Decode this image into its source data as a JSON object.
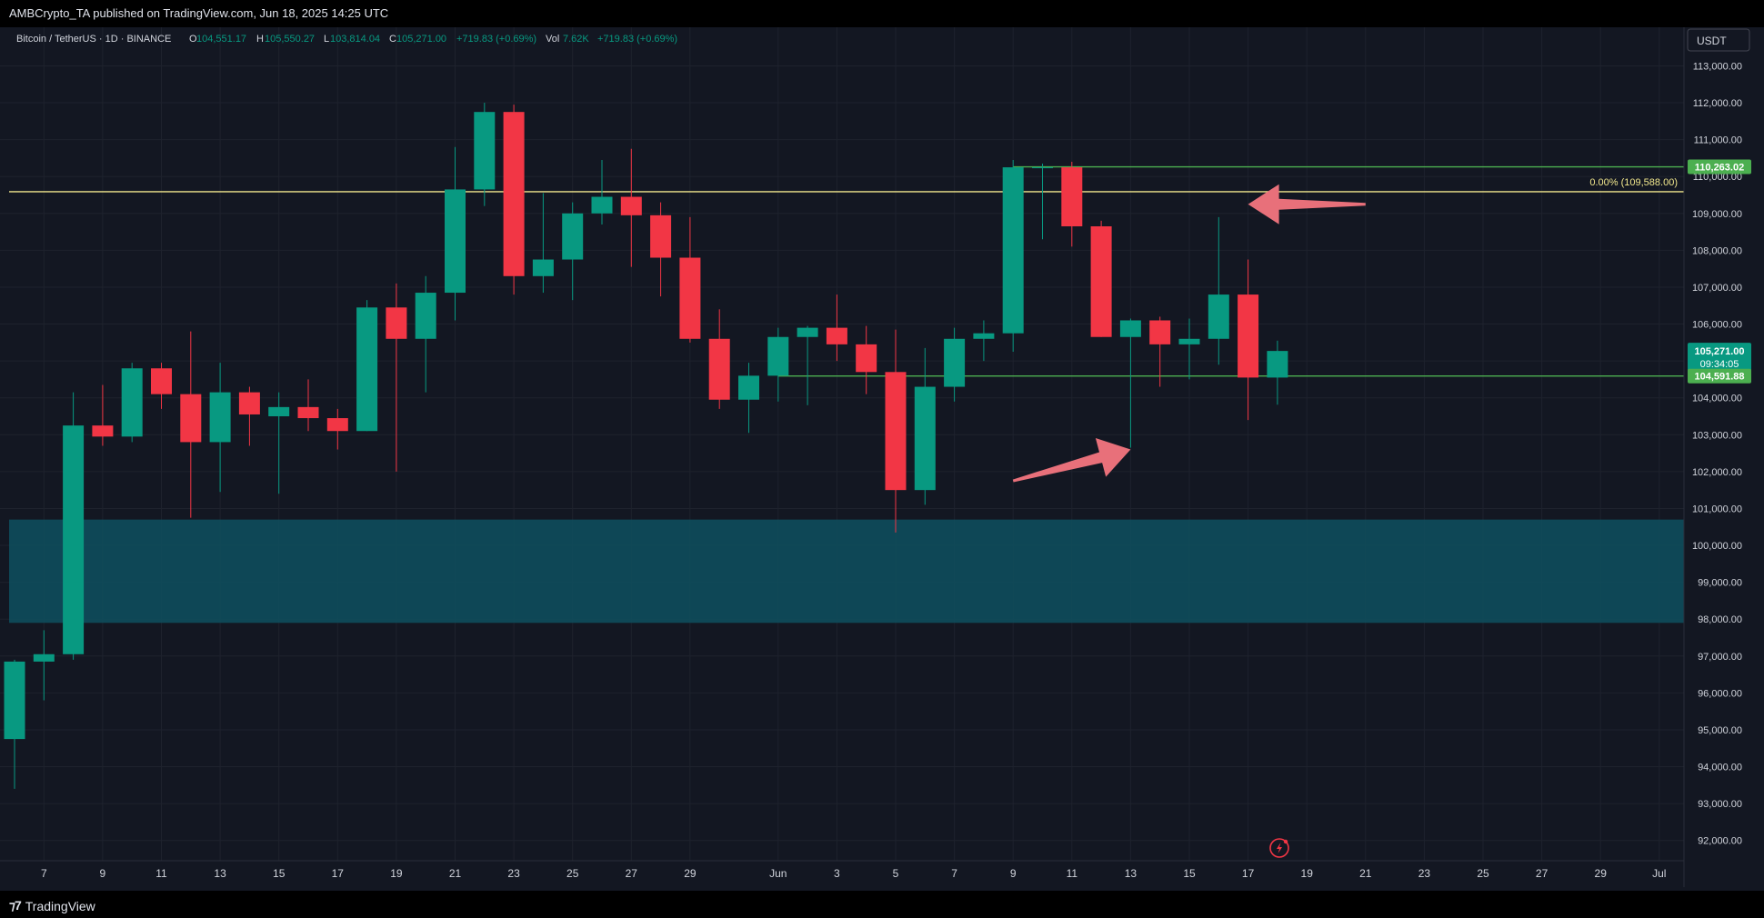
{
  "header": {
    "published_text": "AMBCrypto_TA published on TradingView.com, Jun 18, 2025 14:25 UTC"
  },
  "legend": {
    "symbol": "Bitcoin / TetherUS · 1D · BINANCE",
    "open_label": "O",
    "open": "104,551.17",
    "high_label": "H",
    "high": "105,550.27",
    "low_label": "L",
    "low": "103,814.04",
    "close_label": "C",
    "close": "105,271.00",
    "change": "+719.83 (+0.69%)",
    "vol_label": "Vol",
    "vol": "7.62K",
    "vol_change": "+719.83 (+0.69%)"
  },
  "currency_button": "USDT",
  "footer": {
    "brand": "TradingView"
  },
  "colors": {
    "background": "#131722",
    "up": "#089981",
    "down": "#f23645",
    "level_line": "#4caf50",
    "fib_line": "#f0e68c",
    "zone": "#0e4d5c",
    "arrow": "#e8707a"
  },
  "chart_data": {
    "type": "candlestick",
    "ylim": [
      91500,
      113800
    ],
    "y_ticks": [
      92000,
      93000,
      94000,
      95000,
      96000,
      97000,
      98000,
      99000,
      100000,
      101000,
      102000,
      103000,
      104000,
      105000,
      106000,
      107000,
      108000,
      109000,
      110000,
      111000,
      112000,
      113000
    ],
    "y_tick_labels": [
      "92,000.00",
      "93,000.00",
      "94,000.00",
      "95,000.00",
      "96,000.00",
      "97,000.00",
      "98,000.00",
      "99,000.00",
      "100,000.00",
      "101,000.00",
      "102,000.00",
      "103,000.00",
      "104,000.00",
      "105,000.00",
      "106,000.00",
      "107,000.00",
      "108,000.00",
      "109,000.00",
      "110,000.00",
      "111,000.00",
      "112,000.00",
      "113,000.00"
    ],
    "x_ticks": [
      {
        "date": "2025-05-07",
        "label": "7"
      },
      {
        "date": "2025-05-09",
        "label": "9"
      },
      {
        "date": "2025-05-11",
        "label": "11"
      },
      {
        "date": "2025-05-13",
        "label": "13"
      },
      {
        "date": "2025-05-15",
        "label": "15"
      },
      {
        "date": "2025-05-17",
        "label": "17"
      },
      {
        "date": "2025-05-19",
        "label": "19"
      },
      {
        "date": "2025-05-21",
        "label": "21"
      },
      {
        "date": "2025-05-23",
        "label": "23"
      },
      {
        "date": "2025-05-25",
        "label": "25"
      },
      {
        "date": "2025-05-27",
        "label": "27"
      },
      {
        "date": "2025-05-29",
        "label": "29"
      },
      {
        "date": "2025-06-01",
        "label": "Jun"
      },
      {
        "date": "2025-06-03",
        "label": "3"
      },
      {
        "date": "2025-06-05",
        "label": "5"
      },
      {
        "date": "2025-06-07",
        "label": "7"
      },
      {
        "date": "2025-06-09",
        "label": "9"
      },
      {
        "date": "2025-06-11",
        "label": "11"
      },
      {
        "date": "2025-06-13",
        "label": "13"
      },
      {
        "date": "2025-06-15",
        "label": "15"
      },
      {
        "date": "2025-06-17",
        "label": "17"
      },
      {
        "date": "2025-06-19",
        "label": "19"
      },
      {
        "date": "2025-06-21",
        "label": "21"
      },
      {
        "date": "2025-06-23",
        "label": "23"
      },
      {
        "date": "2025-06-25",
        "label": "25"
      },
      {
        "date": "2025-06-27",
        "label": "27"
      },
      {
        "date": "2025-06-29",
        "label": "29"
      },
      {
        "date": "2025-07-01",
        "label": "Jul"
      }
    ],
    "candles": [
      {
        "date": "2025-05-06",
        "o": 94750,
        "h": 96900,
        "l": 93400,
        "c": 96850
      },
      {
        "date": "2025-05-07",
        "o": 96850,
        "h": 97700,
        "l": 95800,
        "c": 97050
      },
      {
        "date": "2025-05-08",
        "o": 97050,
        "h": 104150,
        "l": 96900,
        "c": 103250
      },
      {
        "date": "2025-05-09",
        "o": 103250,
        "h": 104350,
        "l": 102700,
        "c": 102950
      },
      {
        "date": "2025-05-10",
        "o": 102950,
        "h": 104950,
        "l": 102800,
        "c": 104800
      },
      {
        "date": "2025-05-11",
        "o": 104800,
        "h": 104950,
        "l": 103700,
        "c": 104100
      },
      {
        "date": "2025-05-12",
        "o": 104100,
        "h": 105800,
        "l": 100750,
        "c": 102800
      },
      {
        "date": "2025-05-13",
        "o": 102800,
        "h": 104950,
        "l": 101450,
        "c": 104150
      },
      {
        "date": "2025-05-14",
        "o": 104150,
        "h": 104300,
        "l": 102700,
        "c": 103550
      },
      {
        "date": "2025-05-15",
        "o": 103500,
        "h": 104150,
        "l": 101400,
        "c": 103750
      },
      {
        "date": "2025-05-16",
        "o": 103750,
        "h": 104500,
        "l": 103100,
        "c": 103450
      },
      {
        "date": "2025-05-17",
        "o": 103450,
        "h": 103700,
        "l": 102600,
        "c": 103100
      },
      {
        "date": "2025-05-18",
        "o": 103100,
        "h": 106650,
        "l": 103100,
        "c": 106450
      },
      {
        "date": "2025-05-19",
        "o": 106450,
        "h": 107100,
        "l": 102000,
        "c": 105600
      },
      {
        "date": "2025-05-20",
        "o": 105600,
        "h": 107300,
        "l": 104150,
        "c": 106850
      },
      {
        "date": "2025-05-21",
        "o": 106850,
        "h": 110800,
        "l": 106100,
        "c": 109650
      },
      {
        "date": "2025-05-22",
        "o": 109650,
        "h": 112000,
        "l": 109200,
        "c": 111750
      },
      {
        "date": "2025-05-23",
        "o": 111750,
        "h": 111950,
        "l": 106800,
        "c": 107300
      },
      {
        "date": "2025-05-24",
        "o": 107300,
        "h": 109550,
        "l": 106850,
        "c": 107750
      },
      {
        "date": "2025-05-25",
        "o": 107750,
        "h": 109300,
        "l": 106650,
        "c": 109000
      },
      {
        "date": "2025-05-26",
        "o": 109000,
        "h": 110450,
        "l": 108700,
        "c": 109450
      },
      {
        "date": "2025-05-27",
        "o": 109450,
        "h": 110750,
        "l": 107550,
        "c": 108950
      },
      {
        "date": "2025-05-28",
        "o": 108950,
        "h": 109300,
        "l": 106750,
        "c": 107800
      },
      {
        "date": "2025-05-29",
        "o": 107800,
        "h": 108900,
        "l": 105500,
        "c": 105600
      },
      {
        "date": "2025-05-30",
        "o": 105600,
        "h": 106400,
        "l": 103700,
        "c": 103950
      },
      {
        "date": "2025-05-31",
        "o": 103950,
        "h": 104950,
        "l": 103050,
        "c": 104600
      },
      {
        "date": "2025-06-01",
        "o": 104600,
        "h": 105900,
        "l": 103900,
        "c": 105650
      },
      {
        "date": "2025-06-02",
        "o": 105650,
        "h": 105950,
        "l": 103800,
        "c": 105900
      },
      {
        "date": "2025-06-03",
        "o": 105900,
        "h": 106800,
        "l": 105000,
        "c": 105450
      },
      {
        "date": "2025-06-04",
        "o": 105450,
        "h": 105950,
        "l": 104100,
        "c": 104700
      },
      {
        "date": "2025-06-05",
        "o": 104700,
        "h": 105850,
        "l": 100350,
        "c": 101500
      },
      {
        "date": "2025-06-06",
        "o": 101500,
        "h": 105350,
        "l": 101100,
        "c": 104300
      },
      {
        "date": "2025-06-07",
        "o": 104300,
        "h": 105900,
        "l": 103900,
        "c": 105600
      },
      {
        "date": "2025-06-08",
        "o": 105600,
        "h": 106100,
        "l": 105000,
        "c": 105750
      },
      {
        "date": "2025-06-09",
        "o": 105750,
        "h": 110450,
        "l": 105250,
        "c": 110250
      },
      {
        "date": "2025-06-10",
        "o": 110250,
        "h": 110350,
        "l": 108300,
        "c": 110250
      },
      {
        "date": "2025-06-11",
        "o": 110250,
        "h": 110400,
        "l": 108100,
        "c": 108650
      },
      {
        "date": "2025-06-12",
        "o": 108650,
        "h": 108800,
        "l": 105650,
        "c": 105650
      },
      {
        "date": "2025-06-13",
        "o": 105650,
        "h": 106150,
        "l": 102650,
        "c": 106100
      },
      {
        "date": "2025-06-14",
        "o": 106100,
        "h": 106200,
        "l": 104300,
        "c": 105450
      },
      {
        "date": "2025-06-15",
        "o": 105450,
        "h": 106150,
        "l": 104500,
        "c": 105600
      },
      {
        "date": "2025-06-16",
        "o": 105600,
        "h": 108900,
        "l": 104900,
        "c": 106800
      },
      {
        "date": "2025-06-17",
        "o": 106800,
        "h": 107750,
        "l": 103400,
        "c": 104550
      },
      {
        "date": "2025-06-18",
        "o": 104550,
        "h": 105550,
        "l": 103814,
        "c": 105271
      }
    ],
    "horizontal_levels": [
      {
        "type": "resistance",
        "price": 110263.02,
        "label": "110,263.02",
        "from": "2025-06-09"
      },
      {
        "type": "support",
        "price": 104591.88,
        "label": "104,591.88",
        "from": "2025-06-01"
      }
    ],
    "fib_level": {
      "price": 109588.0,
      "label": "0.00% (109,588.00)"
    },
    "zone": {
      "from_price": 97900,
      "to_price": 100700
    },
    "price_tag": {
      "price": 105271,
      "label": "105,271.00",
      "countdown": "09:34:05"
    },
    "annotations": [
      {
        "type": "arrow",
        "direction": "left",
        "from": {
          "date": "2025-06-21",
          "price": 109250
        },
        "to": {
          "date": "2025-06-17",
          "price": 109250
        }
      },
      {
        "type": "arrow",
        "direction": "up-right",
        "from": {
          "date": "2025-06-09",
          "price": 101750
        },
        "to": {
          "date": "2025-06-13",
          "price": 102600
        }
      }
    ]
  }
}
